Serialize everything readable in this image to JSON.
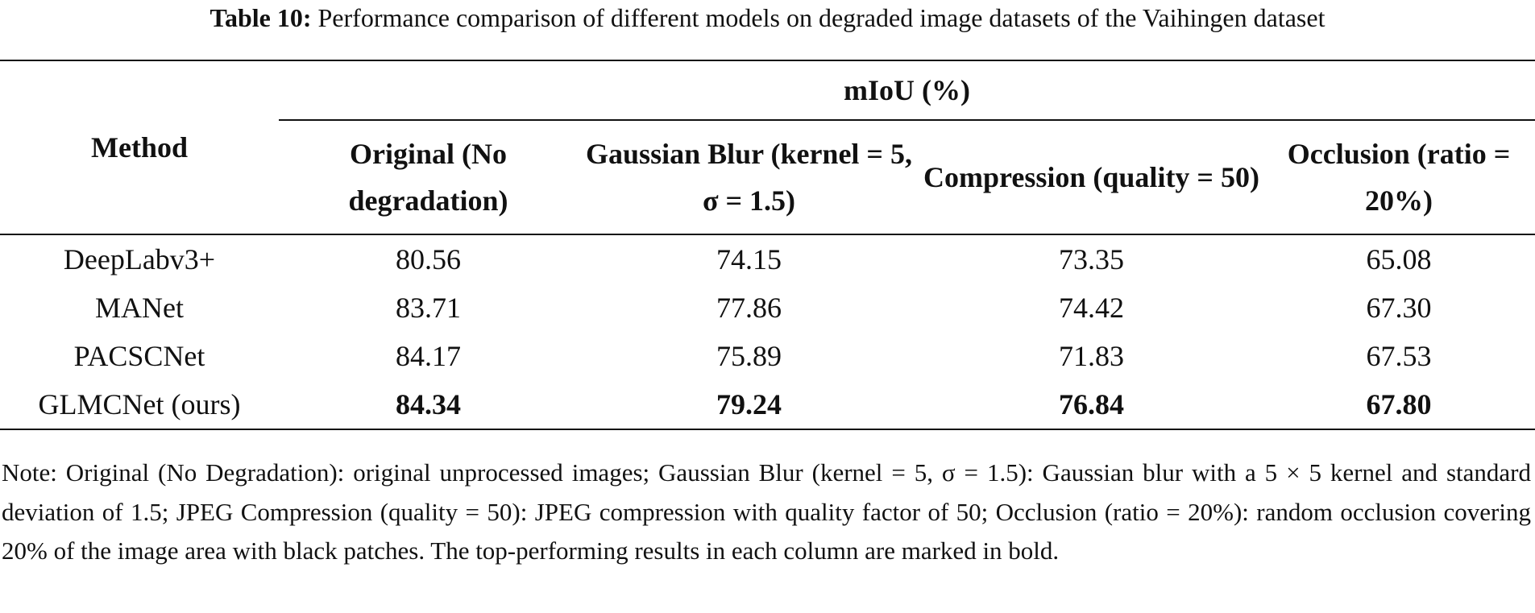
{
  "caption": {
    "label": "Table 10:",
    "text": "Performance comparison of different models on degraded image datasets of the Vaihingen dataset"
  },
  "table": {
    "group_header": "mIoU (%)",
    "headers": [
      "Method",
      "Original (No degradation)",
      "Gaussian Blur (kernel = 5, σ = 1.5)",
      "Compression (quality = 50)",
      "Occlusion (ratio = 20%)"
    ],
    "rows": [
      [
        "DeepLabv3+",
        "80.56",
        "74.15",
        "73.35",
        "65.08"
      ],
      [
        "MANet",
        "83.71",
        "77.86",
        "74.42",
        "67.30"
      ],
      [
        "PACSCNet",
        "84.17",
        "75.89",
        "71.83",
        "67.53"
      ],
      [
        "GLMCNet (ours)",
        "84.34",
        "79.24",
        "76.84",
        "67.80"
      ]
    ]
  },
  "note": "Note: Original (No Degradation): original unprocessed images; Gaussian Blur (kernel = 5, σ = 1.5): Gaussian blur with a 5 × 5 kernel and standard deviation of 1.5; JPEG Compression (quality = 50): JPEG compression with quality factor of 50; Occlusion (ratio = 20%): random occlusion covering 20% of the image area with black patches. The top-performing results in each column are marked in bold."
}
